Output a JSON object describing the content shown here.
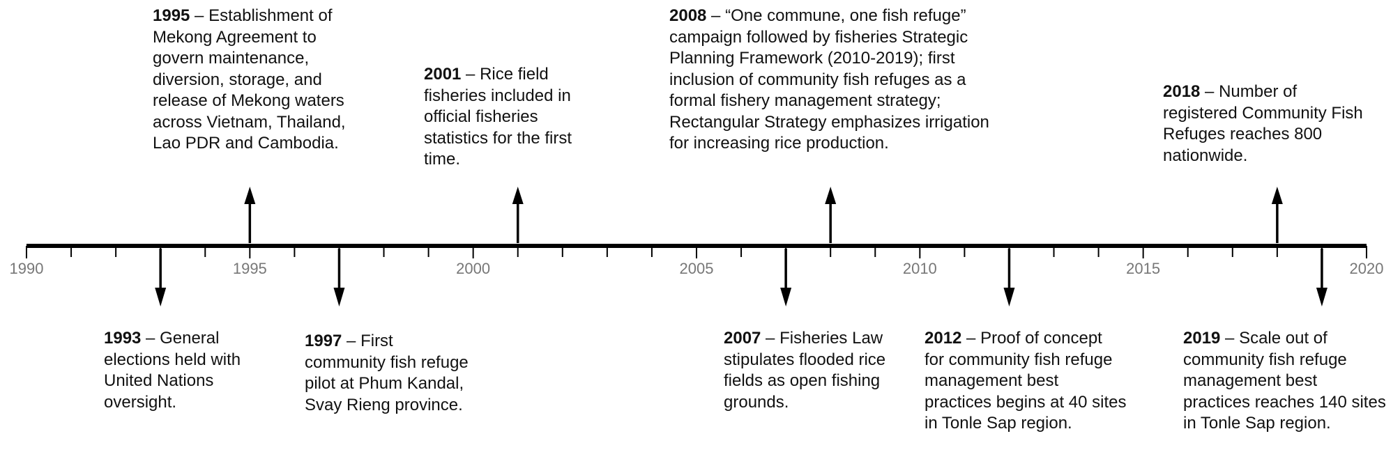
{
  "axis": {
    "start_year": 1990,
    "end_year": 2020,
    "major_ticks": [
      "1990",
      "1995",
      "2000",
      "2005",
      "2010",
      "2015",
      "2020"
    ],
    "line_color": "#000000",
    "label_color": "#777777"
  },
  "events": [
    {
      "id": "1995",
      "year": 1995,
      "direction": "up",
      "year_label": "1995",
      "lines": [
        " – Establishment of",
        "Mekong Agreement to",
        "govern maintenance,",
        "diversion, storage, and",
        "release of Mekong waters",
        "across Vietnam, Thailand,",
        "Lao PDR and Cambodia."
      ]
    },
    {
      "id": "2001",
      "year": 2001,
      "direction": "up",
      "year_label": "2001",
      "lines": [
        " – Rice field",
        "fisheries included in",
        "official fisheries",
        "statistics for the first",
        "time."
      ]
    },
    {
      "id": "2008",
      "year": 2008,
      "direction": "up",
      "year_label": "2008",
      "lines": [
        " – “One commune, one fish refuge”",
        "campaign followed by fisheries Strategic",
        "Planning Framework (2010-2019); first",
        "inclusion of community fish refuges as a",
        "formal fishery management strategy;",
        "Rectangular Strategy emphasizes irrigation",
        "for increasing rice production."
      ]
    },
    {
      "id": "2018",
      "year": 2018,
      "direction": "up",
      "year_label": "2018",
      "lines": [
        " – Number of",
        "registered Community Fish",
        "Refuges reaches 800",
        "nationwide."
      ]
    },
    {
      "id": "1993",
      "year": 1993,
      "direction": "down",
      "year_label": "1993",
      "lines": [
        " – General",
        "elections held with",
        "United Nations",
        "oversight."
      ]
    },
    {
      "id": "1997",
      "year": 1997,
      "direction": "down",
      "year_label": "1997",
      "lines": [
        " – First",
        "community fish refuge",
        "pilot at Phum Kandal,",
        "Svay Rieng province."
      ]
    },
    {
      "id": "2007",
      "year": 2007,
      "direction": "down",
      "year_label": "2007",
      "lines": [
        " – Fisheries Law",
        "stipulates flooded rice",
        "fields as open fishing",
        "grounds."
      ]
    },
    {
      "id": "2012",
      "year": 2012,
      "direction": "down",
      "year_label": "2012",
      "lines": [
        " – Proof of concept",
        "for community fish refuge",
        "management best",
        "practices begins at 40 sites",
        "in Tonle Sap region."
      ]
    },
    {
      "id": "2019",
      "year": 2019,
      "direction": "down",
      "year_label": "2019",
      "lines": [
        " – Scale out of",
        "community fish refuge",
        "management best",
        "practices reaches 140 sites",
        "in Tonle Sap region."
      ]
    }
  ]
}
